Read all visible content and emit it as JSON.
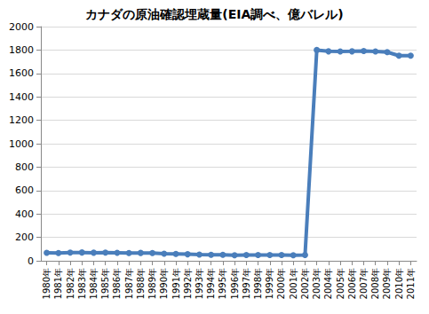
{
  "chart_data": {
    "type": "line",
    "title": "カナダの原油確認埋蔵量(EIA調べ、億バレル)",
    "categories": [
      "1980年",
      "1981年",
      "1982年",
      "1983年",
      "1984年",
      "1985年",
      "1986年",
      "1987年",
      "1988年",
      "1989年",
      "1990年",
      "1991年",
      "1992年",
      "1993年",
      "1994年",
      "1995年",
      "1996年",
      "1997年",
      "1998年",
      "1999年",
      "2000年",
      "2001年",
      "2002年",
      "2003年",
      "2004年",
      "2005年",
      "2006年",
      "2007年",
      "2008年",
      "2009年",
      "2010年",
      "2011年"
    ],
    "values": [
      68,
      66,
      70,
      71,
      69,
      70,
      68,
      66,
      67,
      66,
      61,
      59,
      56,
      53,
      51,
      51,
      48,
      49,
      49,
      49,
      49,
      48,
      49,
      1800,
      1789,
      1788,
      1789,
      1792,
      1788,
      1782,
      1752,
      1752
    ],
    "color": "#4a7ebb",
    "marker": "circle",
    "ylim": [
      0,
      2000
    ],
    "yticks": [
      0,
      200,
      400,
      600,
      800,
      1000,
      1200,
      1400,
      1600,
      1800,
      2000
    ],
    "grid": true
  }
}
